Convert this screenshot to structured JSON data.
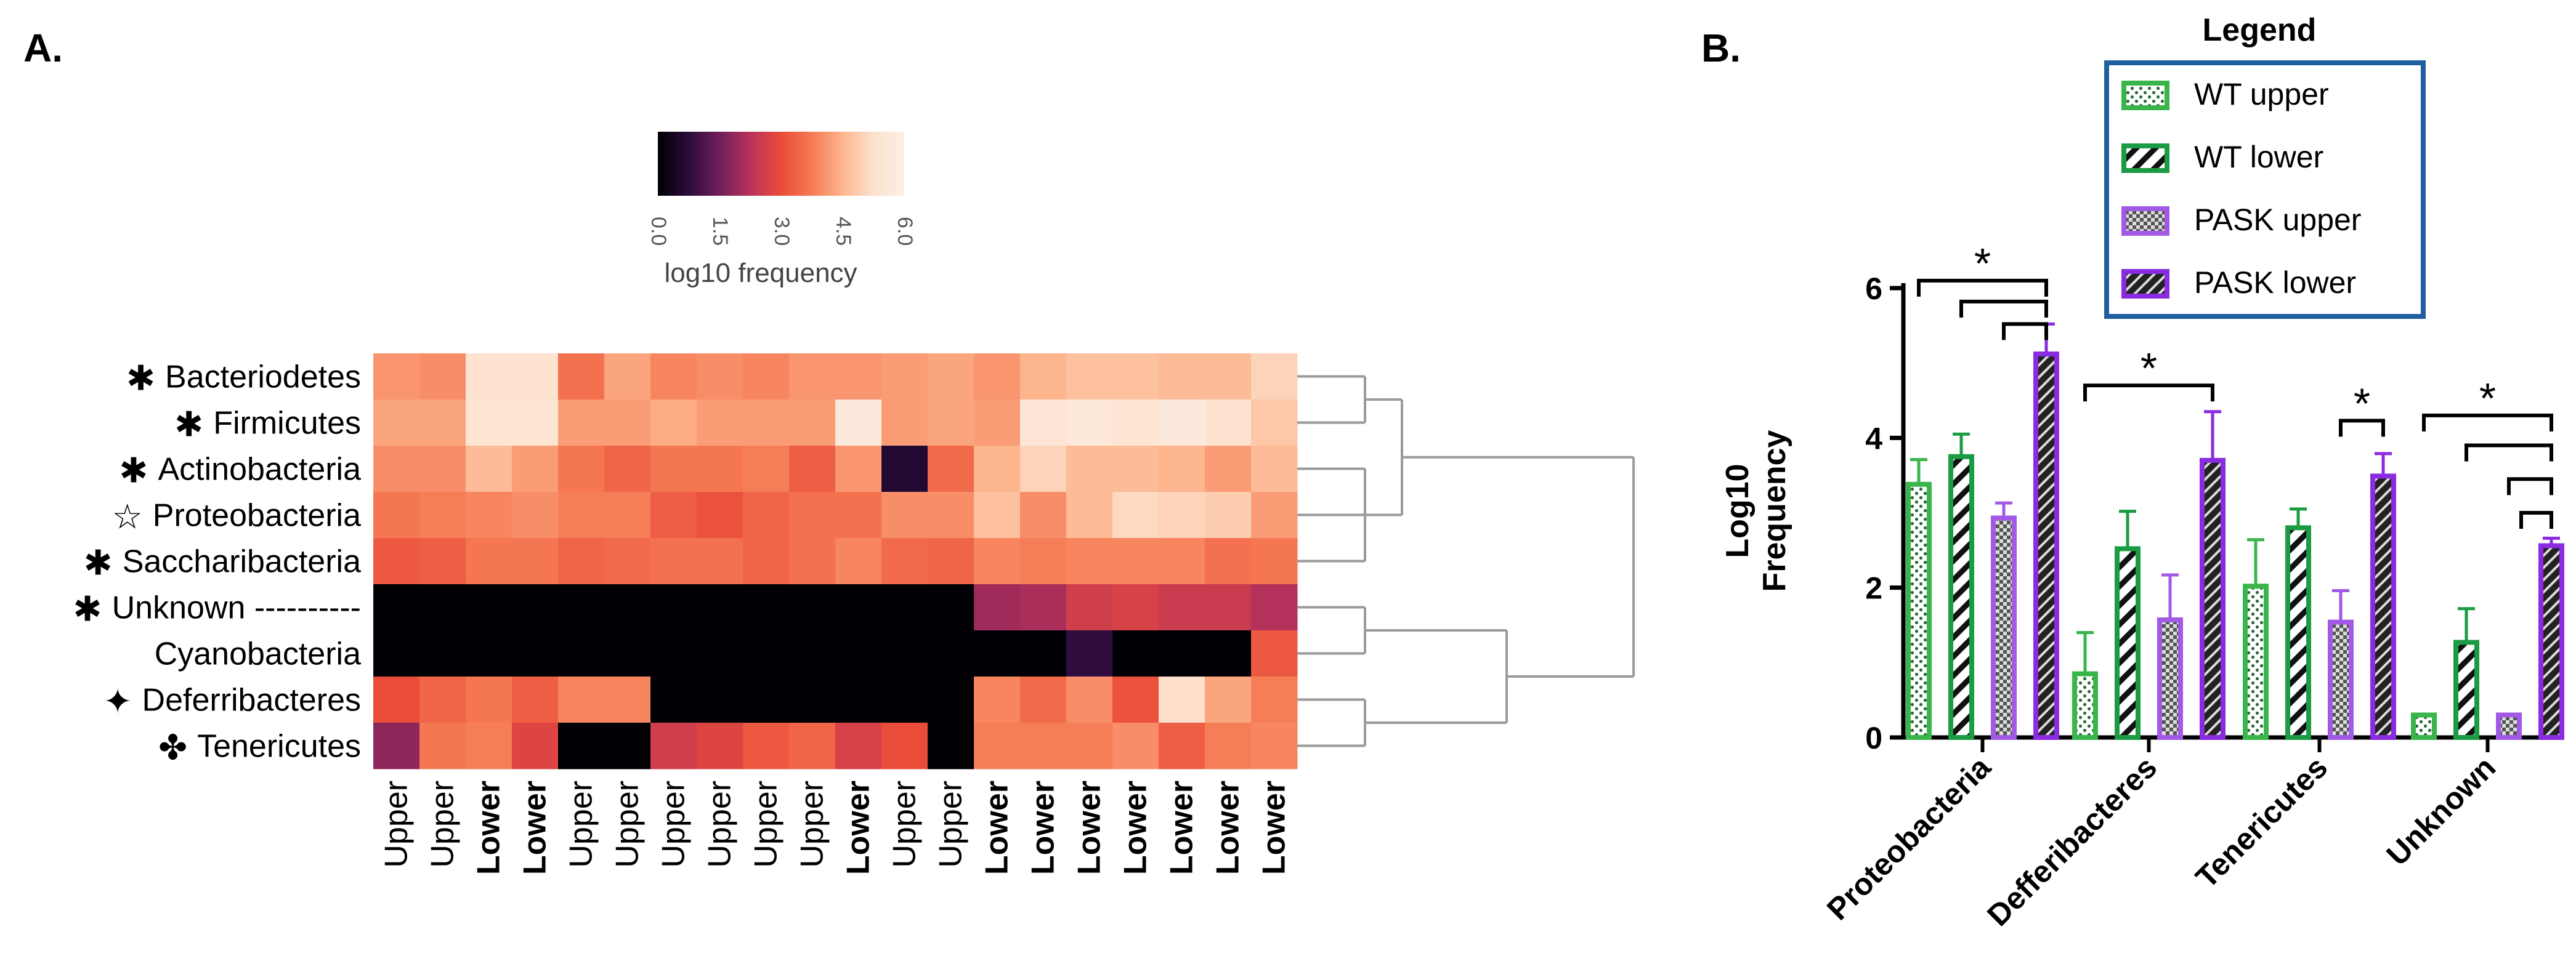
{
  "chart_data": [
    {
      "type": "heatmap",
      "panel_label": "A.",
      "colorbar": {
        "title": "log10 frequency",
        "ticks": [
          "0.0",
          "1.5",
          "3.0",
          "4.5",
          "6.0"
        ],
        "range": [
          0,
          6
        ],
        "colors": [
          "#000004",
          "#2b0b3d",
          "#701e5a",
          "#b8325a",
          "#ea4c3a",
          "#f57a53",
          "#fdb58e",
          "#fde2cf",
          "#fdeee4"
        ]
      },
      "rows": [
        {
          "label": "Bacteriodetes",
          "marker": "✱"
        },
        {
          "label": "Firmicutes",
          "marker": "✱"
        },
        {
          "label": "Actinobacteria",
          "marker": "✱"
        },
        {
          "label": "Proteobacteria",
          "marker": "☆"
        },
        {
          "label": "Saccharibacteria",
          "marker": "✱"
        },
        {
          "label": "Unknown ----------",
          "marker": "✱"
        },
        {
          "label": "Cyanobacteria",
          "marker": ""
        },
        {
          "label": "Deferribacteres",
          "marker": "✦"
        },
        {
          "label": "Tenericutes",
          "marker": "✤"
        }
      ],
      "columns": [
        "Upper",
        "Upper",
        "Lower",
        "Lower",
        "Upper",
        "Upper",
        "Upper",
        "Upper",
        "Upper",
        "Upper",
        "Lower",
        "Upper",
        "Upper",
        "Lower",
        "Lower",
        "Lower",
        "Lower",
        "Lower",
        "Lower",
        "Lower"
      ],
      "values": [
        [
          4.1,
          4.0,
          5.3,
          5.3,
          3.6,
          4.3,
          3.9,
          4.0,
          3.9,
          4.1,
          4.1,
          4.2,
          4.3,
          4.1,
          4.5,
          4.7,
          4.7,
          4.6,
          4.6,
          5.0
        ],
        [
          4.3,
          4.3,
          5.4,
          5.4,
          4.2,
          4.2,
          4.4,
          4.2,
          4.2,
          4.2,
          5.7,
          4.2,
          4.3,
          4.2,
          5.5,
          5.6,
          5.4,
          5.7,
          5.3,
          4.8
        ],
        [
          4.0,
          4.0,
          4.6,
          4.2,
          3.7,
          3.4,
          3.7,
          3.7,
          3.8,
          3.3,
          4.1,
          0.6,
          3.5,
          4.5,
          5.0,
          4.6,
          4.6,
          4.5,
          4.2,
          4.6
        ],
        [
          3.7,
          3.8,
          3.9,
          4.0,
          3.8,
          3.8,
          3.3,
          3.1,
          3.4,
          3.6,
          3.6,
          4.0,
          4.0,
          4.7,
          4.0,
          4.6,
          5.1,
          5.0,
          4.9,
          4.2
        ],
        [
          3.2,
          3.3,
          3.7,
          3.7,
          3.4,
          3.5,
          3.6,
          3.6,
          3.4,
          3.6,
          3.9,
          3.5,
          3.4,
          3.9,
          3.8,
          3.9,
          3.9,
          3.9,
          3.6,
          3.7
        ],
        [
          0,
          0,
          0,
          0,
          0,
          0,
          0,
          0,
          0,
          0,
          0,
          0,
          0,
          2.0,
          2.1,
          2.6,
          2.7,
          2.5,
          2.5,
          2.2
        ],
        [
          0,
          0,
          0,
          0,
          0,
          0,
          0,
          0,
          0,
          0,
          0,
          0,
          0,
          0,
          0,
          0.8,
          0,
          0,
          0,
          3.2
        ],
        [
          3.0,
          3.4,
          3.7,
          3.3,
          3.9,
          3.9,
          0,
          0,
          0,
          0,
          0,
          0,
          0,
          3.9,
          3.5,
          4.0,
          3.1,
          5.2,
          4.3,
          3.8
        ],
        [
          1.8,
          3.7,
          3.8,
          2.8,
          0,
          0,
          2.6,
          2.8,
          3.2,
          3.4,
          2.7,
          3.0,
          0,
          3.8,
          3.8,
          3.8,
          4.0,
          3.3,
          3.8,
          3.9
        ]
      ],
      "row_dendrogram": {
        "groups": [
          [
            0,
            1
          ],
          [
            2,
            3,
            4
          ],
          [
            5,
            6
          ],
          [
            7,
            8
          ]
        ],
        "top_split": [
          [
            0,
            1,
            2,
            3,
            4
          ],
          [
            5,
            6,
            7,
            8
          ]
        ]
      }
    },
    {
      "type": "bar",
      "panel_label": "B.",
      "title": "",
      "ylabel": "Log10\nFrequency",
      "xlabel": "",
      "ylim": [
        0,
        6
      ],
      "yticks": [
        "0",
        "2",
        "4",
        "6"
      ],
      "categories": [
        "Proteobacteria",
        "Defferibacteres",
        "Tenericutes",
        "Unknown"
      ],
      "series": [
        {
          "name": "WT upper",
          "values": [
            3.38,
            0.85,
            2.02,
            0.3
          ],
          "errors": [
            0.33,
            0.55,
            0.62,
            0.0
          ],
          "color": "#39b54a",
          "pattern": "dots"
        },
        {
          "name": "WT lower",
          "values": [
            3.75,
            2.52,
            2.8,
            1.27
          ],
          "errors": [
            0.3,
            0.5,
            0.25,
            0.45
          ],
          "color": "#1a9b44",
          "pattern": "hatch-light"
        },
        {
          "name": "PASK upper",
          "values": [
            2.93,
            1.57,
            1.54,
            0.3
          ],
          "errors": [
            0.2,
            0.6,
            0.42,
            0.0
          ],
          "color": "#a25ae6",
          "pattern": "checker"
        },
        {
          "name": "PASK lower",
          "values": [
            5.12,
            3.7,
            3.49,
            2.56
          ],
          "errors": [
            0.4,
            0.65,
            0.3,
            0.1
          ],
          "color": "#8a2be2",
          "pattern": "hatch-dark"
        }
      ],
      "significance_marker": "*",
      "legend": {
        "title": "Legend",
        "position": "top-right",
        "border_color": "#1f5fa0"
      }
    }
  ]
}
